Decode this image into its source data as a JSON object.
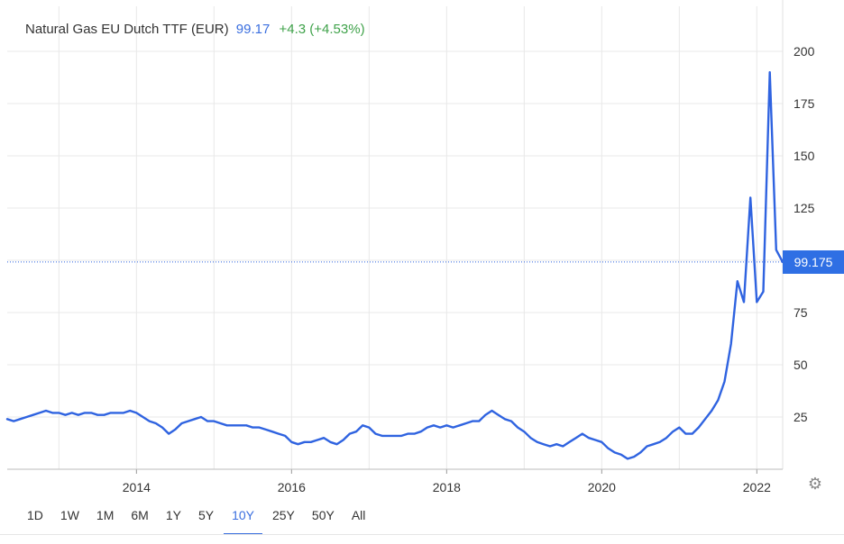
{
  "header": {
    "instrument": "Natural Gas EU Dutch TTF (EUR)",
    "price": "99.17",
    "change": "+4.3 (+4.53%)"
  },
  "price_tag": "99.175",
  "colors": {
    "line": "#2f63e0",
    "price": "#3b6fdf",
    "change": "#3fa24a",
    "tag_bg": "#2f6fe4",
    "grid": "#e8e8e8"
  },
  "settings_icon": "gear-icon",
  "range_buttons": [
    {
      "label": "1D",
      "active": false
    },
    {
      "label": "1W",
      "active": false
    },
    {
      "label": "1M",
      "active": false
    },
    {
      "label": "6M",
      "active": false
    },
    {
      "label": "1Y",
      "active": false
    },
    {
      "label": "5Y",
      "active": false
    },
    {
      "label": "10Y",
      "active": true
    },
    {
      "label": "25Y",
      "active": false
    },
    {
      "label": "50Y",
      "active": false
    },
    {
      "label": "All",
      "active": false
    }
  ],
  "chart_data": {
    "type": "line",
    "title": "",
    "xlabel": "",
    "ylabel": "",
    "y_ticks": [
      25,
      50,
      75,
      100,
      125,
      150,
      175,
      200
    ],
    "y_tick_labels": [
      "25",
      "50",
      "75",
      "",
      "125",
      "150",
      "175",
      "200"
    ],
    "x_ticks": [
      "2014",
      "2016",
      "2018",
      "2020",
      "2022"
    ],
    "xlim": [
      "2012-05",
      "2022-05"
    ],
    "ylim": [
      0,
      200
    ],
    "grid": true,
    "last_value": 99.175,
    "series": [
      {
        "x": [
          "2012-05",
          "2012-06",
          "2012-07",
          "2012-08",
          "2012-09",
          "2012-10",
          "2012-11",
          "2012-12",
          "2013-01",
          "2013-02",
          "2013-03",
          "2013-04",
          "2013-05",
          "2013-06",
          "2013-07",
          "2013-08",
          "2013-09",
          "2013-10",
          "2013-11",
          "2013-12",
          "2014-01",
          "2014-02",
          "2014-03",
          "2014-04",
          "2014-05",
          "2014-06",
          "2014-07",
          "2014-08",
          "2014-09",
          "2014-10",
          "2014-11",
          "2014-12",
          "2015-01",
          "2015-02",
          "2015-03",
          "2015-04",
          "2015-05",
          "2015-06",
          "2015-07",
          "2015-08",
          "2015-09",
          "2015-10",
          "2015-11",
          "2015-12",
          "2016-01",
          "2016-02",
          "2016-03",
          "2016-04",
          "2016-05",
          "2016-06",
          "2016-07",
          "2016-08",
          "2016-09",
          "2016-10",
          "2016-11",
          "2016-12",
          "2017-01",
          "2017-02",
          "2017-03",
          "2017-04",
          "2017-05",
          "2017-06",
          "2017-07",
          "2017-08",
          "2017-09",
          "2017-10",
          "2017-11",
          "2017-12",
          "2018-01",
          "2018-02",
          "2018-03",
          "2018-04",
          "2018-05",
          "2018-06",
          "2018-07",
          "2018-08",
          "2018-09",
          "2018-10",
          "2018-11",
          "2018-12",
          "2019-01",
          "2019-02",
          "2019-03",
          "2019-04",
          "2019-05",
          "2019-06",
          "2019-07",
          "2019-08",
          "2019-09",
          "2019-10",
          "2019-11",
          "2019-12",
          "2020-01",
          "2020-02",
          "2020-03",
          "2020-04",
          "2020-05",
          "2020-06",
          "2020-07",
          "2020-08",
          "2020-09",
          "2020-10",
          "2020-11",
          "2020-12",
          "2021-01",
          "2021-02",
          "2021-03",
          "2021-04",
          "2021-05",
          "2021-06",
          "2021-07",
          "2021-08",
          "2021-09",
          "2021-10",
          "2021-11",
          "2021-12",
          "2022-01",
          "2022-02",
          "2022-03",
          "2022-04",
          "2022-05"
        ],
        "values": [
          24,
          23,
          24,
          25,
          26,
          27,
          28,
          27,
          27,
          26,
          27,
          26,
          27,
          27,
          26,
          26,
          27,
          27,
          27,
          28,
          27,
          25,
          23,
          22,
          20,
          17,
          19,
          22,
          23,
          24,
          25,
          23,
          23,
          22,
          21,
          21,
          21,
          21,
          20,
          20,
          19,
          18,
          17,
          16,
          13,
          12,
          13,
          13,
          14,
          15,
          13,
          12,
          14,
          17,
          18,
          21,
          20,
          17,
          16,
          16,
          16,
          16,
          17,
          17,
          18,
          20,
          21,
          20,
          21,
          20,
          21,
          22,
          23,
          23,
          26,
          28,
          26,
          24,
          23,
          20,
          18,
          15,
          13,
          12,
          11,
          12,
          11,
          13,
          15,
          17,
          15,
          14,
          13,
          10,
          8,
          7,
          5,
          6,
          8,
          11,
          12,
          13,
          15,
          18,
          20,
          17,
          17,
          20,
          24,
          28,
          33,
          42,
          60,
          90,
          80,
          130,
          80,
          85,
          190,
          105,
          99.175
        ]
      }
    ]
  }
}
